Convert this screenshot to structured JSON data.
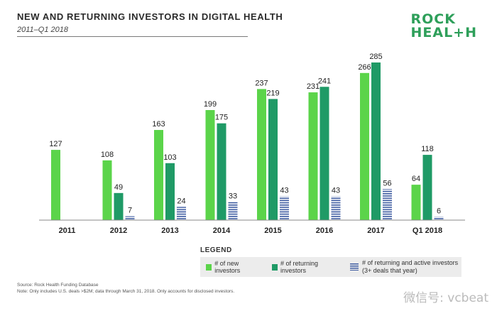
{
  "header": {
    "title": "NEW AND RETURNING INVESTORS IN DIGITAL HEALTH",
    "subtitle": "2011–Q1 2018",
    "logo_line1": "ROCK",
    "logo_line2": "HEAL+H"
  },
  "colors": {
    "new": "#5bd44a",
    "returning": "#1f9a66",
    "active": "#3c5aa0"
  },
  "chart_data": {
    "type": "bar",
    "categories": [
      "2011",
      "2012",
      "2013",
      "2014",
      "2015",
      "2016",
      "2017",
      "Q1 2018"
    ],
    "series": [
      {
        "name": "# of new investors",
        "values": [
          127,
          108,
          163,
          199,
          237,
          231,
          266,
          64
        ]
      },
      {
        "name": "# of returning investors",
        "values": [
          null,
          49,
          103,
          175,
          219,
          241,
          285,
          118
        ]
      },
      {
        "name": "# of returning and active investors (3+ deals that year)",
        "values": [
          null,
          7,
          24,
          33,
          43,
          43,
          56,
          6
        ]
      }
    ],
    "ylim": [
      0,
      285
    ],
    "grid": false,
    "legend": "bottom"
  },
  "legend": {
    "title": "LEGEND",
    "items": [
      "# of new investors",
      "# of returning investors",
      "# of returning and active investors (3+ deals that year)"
    ]
  },
  "footer": {
    "source": "Source: Rock Health Funding Database",
    "note": "Note: Only includes U.S. deals >$2M; data through March 31, 2018. Only accounts for disclosed investors."
  },
  "watermark": "微信号: vcbeat"
}
